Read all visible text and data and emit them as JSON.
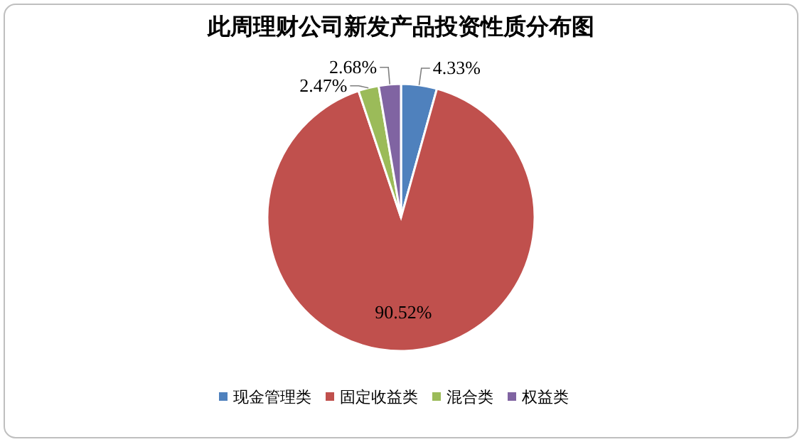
{
  "chart_data": {
    "type": "pie",
    "title": "此周理财公司新发产品投资性质分布图",
    "categories": [
      "现金管理类",
      "固定收益类",
      "混合类",
      "权益类"
    ],
    "values": [
      4.33,
      90.52,
      2.47,
      2.68
    ],
    "colors": [
      "#4f81bd",
      "#c0504d",
      "#9bbb59",
      "#8064a2"
    ],
    "value_labels": [
      "4.33%",
      "90.52%",
      "2.47%",
      "2.68%"
    ],
    "legend": "bottom"
  }
}
